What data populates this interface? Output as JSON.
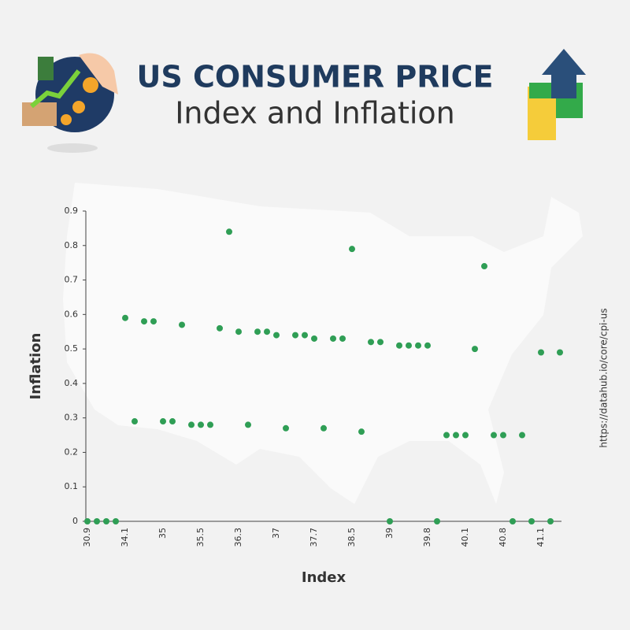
{
  "chart_data": {
    "type": "scatter",
    "title": "US CONSUMER PRICE",
    "subtitle": "Index and Inflation",
    "x_label": "Index",
    "y_label": "Inflation",
    "source": "https://datahub.io/core/cpi-us",
    "color": "#2f9e55",
    "categories": [
      "30.9",
      null,
      null,
      null,
      "34.1",
      null,
      null,
      null,
      "35",
      null,
      null,
      null,
      "35.5",
      null,
      null,
      null,
      "36.3",
      null,
      null,
      null,
      "37",
      null,
      null,
      null,
      "37.7",
      null,
      null,
      null,
      "38.5",
      null,
      null,
      null,
      "39",
      null,
      null,
      null,
      "39.8",
      null,
      null,
      null,
      "40.1",
      null,
      null,
      null,
      "40.8",
      null,
      null,
      null,
      "41.1",
      null,
      null
    ],
    "values": [
      0,
      0,
      0,
      0,
      0.59,
      0.29,
      0.58,
      0.58,
      0.29,
      0.29,
      0.57,
      0.28,
      0.28,
      0.28,
      0.56,
      0.84,
      0.55,
      0.28,
      0.55,
      0.55,
      0.54,
      0.27,
      0.54,
      0.54,
      0.53,
      0.27,
      0.53,
      0.53,
      0.79,
      0.26,
      0.52,
      0.52,
      0,
      0.51,
      0.51,
      0.51,
      0.51,
      0,
      0.25,
      0.25,
      0.25,
      0.5,
      0.74,
      0.25,
      0.25,
      0,
      0.25,
      0,
      0.49,
      0,
      0.49
    ],
    "ylim": [
      0,
      0.9
    ],
    "yticks": [
      0,
      0.1,
      0.2,
      0.3,
      0.4,
      0.5,
      0.6,
      0.7,
      0.8,
      0.9
    ],
    "grid": false
  }
}
